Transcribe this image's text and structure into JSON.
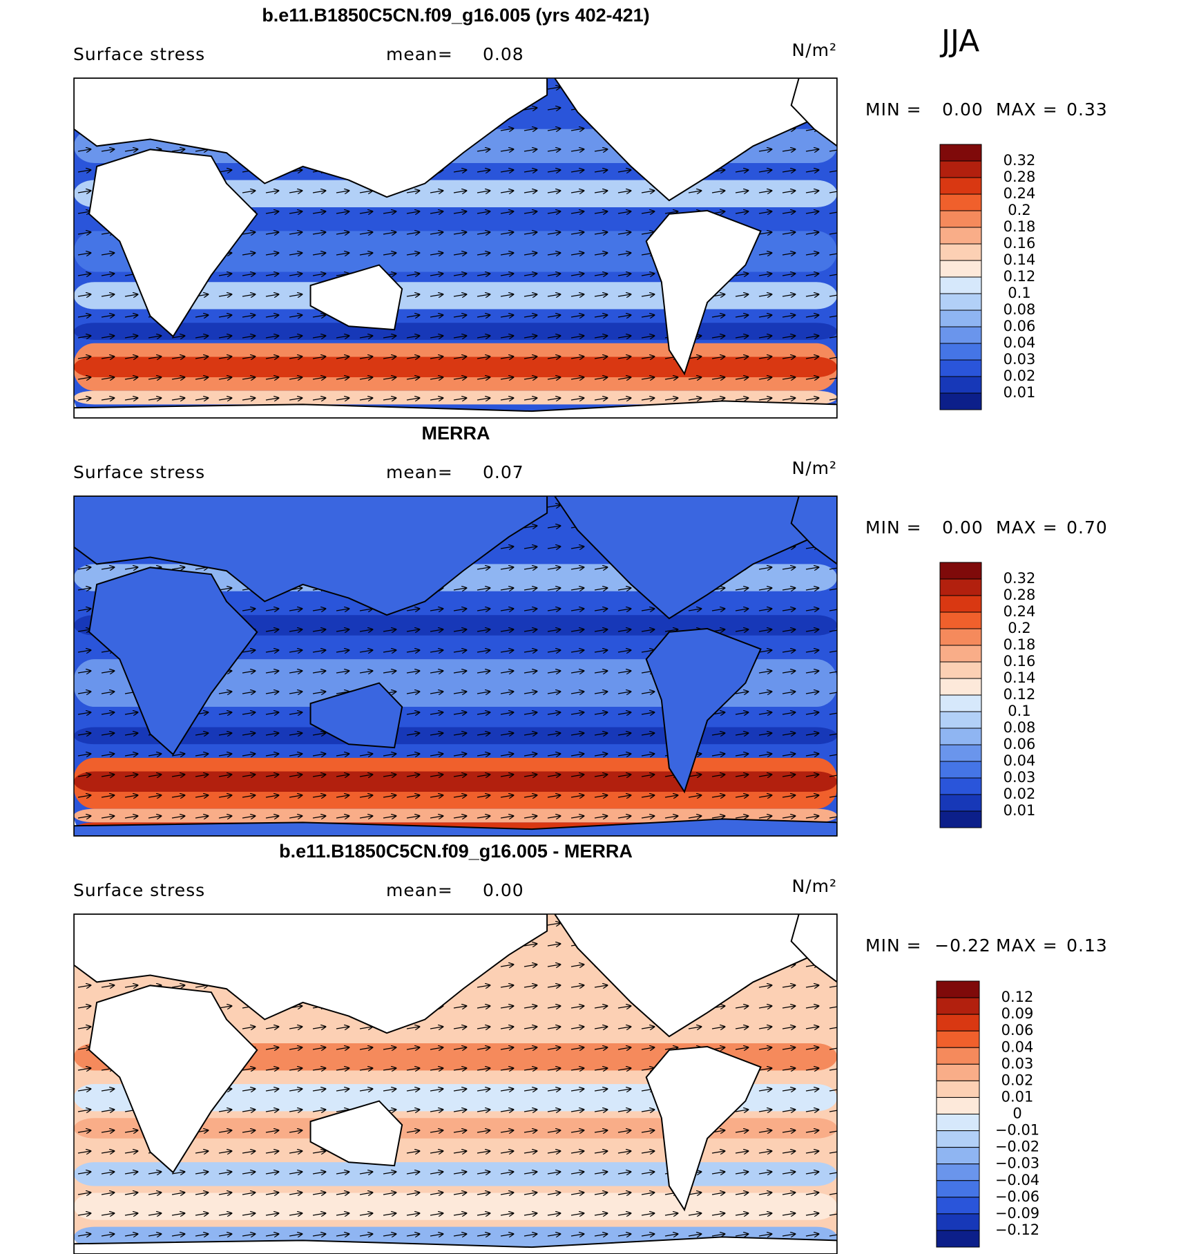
{
  "season": "JJA",
  "panels": [
    {
      "title": "b.e11.B1850C5CN.f09_g16.005 (yrs 402-421)",
      "label": "Surface stress",
      "mean_label": "mean=",
      "mean": "0.08",
      "units": "N/m²",
      "min_label": "MIN =",
      "min": "0.00",
      "max_label": "MAX =",
      "max": "0.33",
      "colorbar": {
        "labels": [
          "0.32",
          "0.28",
          "0.24",
          "0.2",
          "0.18",
          "0.16",
          "0.14",
          "0.12",
          "0.1",
          "0.08",
          "0.06",
          "0.04",
          "0.03",
          "0.02",
          "0.01"
        ],
        "colors": [
          "#7f0a0a",
          "#b2200e",
          "#d93812",
          "#f0602c",
          "#f58a5c",
          "#f9ad88",
          "#fcd0b4",
          "#fde9da",
          "#d6e8fb",
          "#b2d0f7",
          "#8fb5f2",
          "#6a95ec",
          "#4575e6",
          "#2a55da",
          "#1738b8",
          "#0c1f8a"
        ]
      }
    },
    {
      "title": "MERRA",
      "label": "Surface stress",
      "mean_label": "mean=",
      "mean": "0.07",
      "units": "N/m²",
      "min_label": "MIN =",
      "min": "0.00",
      "max_label": "MAX =",
      "max": "0.70",
      "colorbar": {
        "labels": [
          "0.32",
          "0.28",
          "0.24",
          "0.2",
          "0.18",
          "0.16",
          "0.14",
          "0.12",
          "0.1",
          "0.08",
          "0.06",
          "0.04",
          "0.03",
          "0.02",
          "0.01"
        ],
        "colors": [
          "#7f0a0a",
          "#b2200e",
          "#d93812",
          "#f0602c",
          "#f58a5c",
          "#f9ad88",
          "#fcd0b4",
          "#fde9da",
          "#d6e8fb",
          "#b2d0f7",
          "#8fb5f2",
          "#6a95ec",
          "#4575e6",
          "#2a55da",
          "#1738b8",
          "#0c1f8a"
        ]
      }
    },
    {
      "title": "b.e11.B1850C5CN.f09_g16.005 - MERRA",
      "label": "Surface stress",
      "mean_label": "mean=",
      "mean": "0.00",
      "units": "N/m²",
      "min_label": "MIN =",
      "min": "−0.22",
      "max_label": "MAX =",
      "max": "0.13",
      "colorbar": {
        "labels": [
          "0.12",
          "0.09",
          "0.06",
          "0.04",
          "0.03",
          "0.02",
          "0.01",
          "0",
          "−0.01",
          "−0.02",
          "−0.03",
          "−0.04",
          "−0.06",
          "−0.09",
          "−0.12"
        ],
        "colors": [
          "#7f0a0a",
          "#b2200e",
          "#d93812",
          "#f0602c",
          "#f58a5c",
          "#f9ad88",
          "#fcd0b4",
          "#fde9da",
          "#d6e8fb",
          "#b2d0f7",
          "#8fb5f2",
          "#6a95ec",
          "#4575e6",
          "#2a55da",
          "#1738b8",
          "#0c1f8a"
        ]
      }
    }
  ]
}
